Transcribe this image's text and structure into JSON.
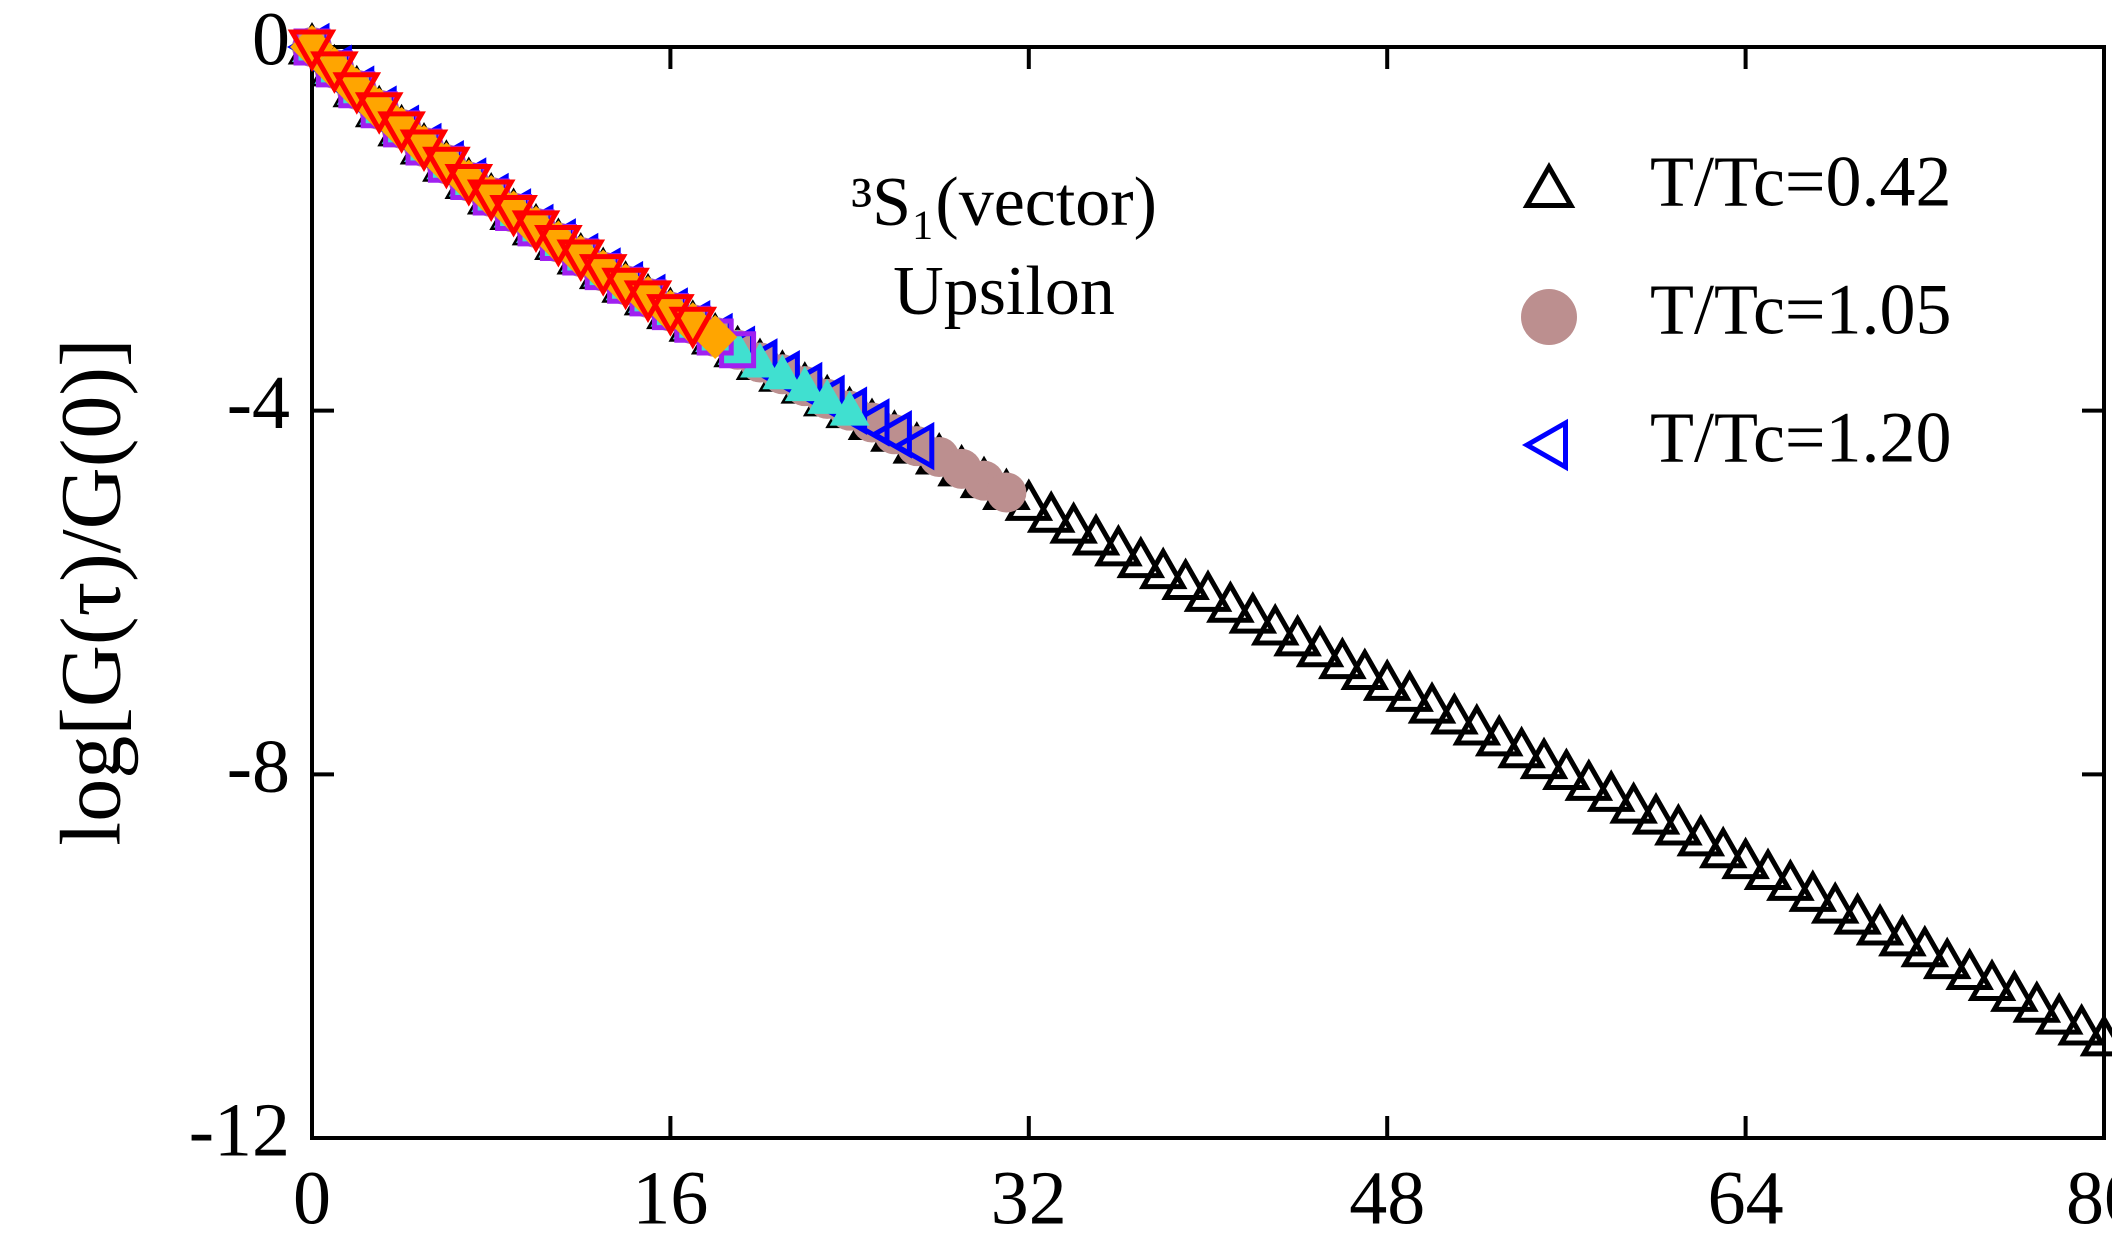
{
  "chart_data": {
    "type": "scatter",
    "ylabel": "log[G(τ)/G(0)]",
    "annotations": [
      "³S₁(vector)",
      "Upsilon"
    ],
    "xlim": [
      0,
      80
    ],
    "xticks": [
      0,
      16,
      32,
      48,
      64,
      80
    ],
    "ylim": [
      -12,
      0
    ],
    "yticks": [
      0,
      -4,
      -8,
      -12
    ],
    "series": [
      {
        "name": "T/Tc=0.42",
        "color": "#000000",
        "marker": "triangle-up",
        "filled": false,
        "x": [
          0,
          1,
          2,
          3,
          4,
          5,
          6,
          7,
          8,
          9,
          10,
          11,
          12,
          13,
          14,
          15,
          16,
          17,
          18,
          19,
          20,
          21,
          22,
          23,
          24,
          25,
          26,
          27,
          28,
          29,
          30,
          31,
          32,
          33,
          34,
          35,
          36,
          37,
          38,
          39,
          40,
          41,
          42,
          43,
          44,
          45,
          46,
          47,
          48,
          49,
          50,
          51,
          52,
          53,
          54,
          55,
          56,
          57,
          58,
          59,
          60,
          61,
          62,
          63,
          64,
          65,
          66,
          67,
          68,
          69,
          70,
          71,
          72,
          73,
          74,
          75,
          76,
          77,
          78,
          79,
          80
        ],
        "values": [
          0,
          -0.24,
          -0.47,
          -0.69,
          -0.9,
          -1.1,
          -1.29,
          -1.48,
          -1.65,
          -1.82,
          -1.99,
          -2.15,
          -2.31,
          -2.47,
          -2.62,
          -2.76,
          -2.91,
          -3.05,
          -3.19,
          -3.33,
          -3.47,
          -3.6,
          -3.73,
          -3.87,
          -4,
          -4.13,
          -4.26,
          -4.39,
          -4.51,
          -4.64,
          -4.77,
          -4.9,
          -5.02,
          -5.15,
          -5.27,
          -5.4,
          -5.52,
          -5.65,
          -5.77,
          -5.89,
          -6.02,
          -6.14,
          -6.26,
          -6.39,
          -6.51,
          -6.63,
          -6.76,
          -6.88,
          -7,
          -7.12,
          -7.25,
          -7.37,
          -7.49,
          -7.61,
          -7.74,
          -7.86,
          -7.98,
          -8.1,
          -8.22,
          -8.35,
          -8.47,
          -8.59,
          -8.71,
          -8.84,
          -8.96,
          -9.08,
          -9.2,
          -9.32,
          -9.45,
          -9.57,
          -9.69,
          -9.81,
          -9.93,
          -10.06,
          -10.18,
          -10.3,
          -10.42,
          -10.54,
          -10.67,
          -10.79,
          -10.91
        ]
      },
      {
        "name": "T/Tc=1.05",
        "color": "#bc8f8f",
        "marker": "circle",
        "filled": true,
        "x": [
          0,
          1,
          2,
          3,
          4,
          5,
          6,
          7,
          8,
          9,
          10,
          11,
          12,
          13,
          14,
          15,
          16,
          17,
          18,
          19,
          20,
          21,
          22,
          23,
          24,
          25,
          26,
          27,
          28,
          29,
          30,
          31
        ],
        "values": [
          0,
          -0.24,
          -0.47,
          -0.69,
          -0.9,
          -1.1,
          -1.29,
          -1.48,
          -1.65,
          -1.82,
          -1.99,
          -2.15,
          -2.31,
          -2.47,
          -2.62,
          -2.76,
          -2.91,
          -3.05,
          -3.19,
          -3.33,
          -3.47,
          -3.6,
          -3.73,
          -3.87,
          -4,
          -4.13,
          -4.26,
          -4.39,
          -4.51,
          -4.64,
          -4.77,
          -4.9
        ]
      },
      {
        "name": "T/Tc=1.20",
        "color": "#0000ff",
        "marker": "triangle-left",
        "filled": false,
        "x": [
          0,
          1,
          2,
          3,
          4,
          5,
          6,
          7,
          8,
          9,
          10,
          11,
          12,
          13,
          14,
          15,
          16,
          17,
          18,
          19,
          20,
          21,
          22,
          23,
          24,
          25,
          26,
          27
        ],
        "values": [
          0,
          -0.24,
          -0.47,
          -0.69,
          -0.9,
          -1.1,
          -1.29,
          -1.48,
          -1.65,
          -1.82,
          -1.99,
          -2.15,
          -2.31,
          -2.47,
          -2.62,
          -2.76,
          -2.91,
          -3.05,
          -3.19,
          -3.33,
          -3.47,
          -3.6,
          -3.73,
          -3.87,
          -4,
          -4.13,
          -4.26,
          -4.39
        ]
      },
      {
        "color": "#40e0d0",
        "marker": "triangle-up",
        "filled": true,
        "x": [
          0,
          1,
          2,
          3,
          4,
          5,
          6,
          7,
          8,
          9,
          10,
          11,
          12,
          13,
          14,
          15,
          16,
          17,
          18,
          19,
          20,
          21,
          22,
          23,
          24
        ],
        "values": [
          0,
          -0.24,
          -0.47,
          -0.69,
          -0.9,
          -1.1,
          -1.29,
          -1.48,
          -1.65,
          -1.82,
          -1.99,
          -2.15,
          -2.31,
          -2.47,
          -2.62,
          -2.76,
          -2.91,
          -3.05,
          -3.19,
          -3.33,
          -3.47,
          -3.6,
          -3.73,
          -3.87,
          -4
        ]
      },
      {
        "color": "#a020f0",
        "marker": "square",
        "filled": false,
        "x": [
          0,
          1,
          2,
          3,
          4,
          5,
          6,
          7,
          8,
          9,
          10,
          11,
          12,
          13,
          14,
          15,
          16,
          17,
          18,
          19
        ],
        "values": [
          0,
          -0.24,
          -0.47,
          -0.69,
          -0.9,
          -1.1,
          -1.29,
          -1.48,
          -1.65,
          -1.82,
          -1.99,
          -2.15,
          -2.31,
          -2.47,
          -2.62,
          -2.76,
          -2.91,
          -3.05,
          -3.19,
          -3.33
        ]
      },
      {
        "color": "#ffa500",
        "marker": "diamond",
        "filled": true,
        "x": [
          0,
          1,
          2,
          3,
          4,
          5,
          6,
          7,
          8,
          9,
          10,
          11,
          12,
          13,
          14,
          15,
          16,
          17,
          18
        ],
        "values": [
          0,
          -0.24,
          -0.47,
          -0.69,
          -0.9,
          -1.1,
          -1.29,
          -1.48,
          -1.65,
          -1.82,
          -1.99,
          -2.15,
          -2.31,
          -2.47,
          -2.62,
          -2.76,
          -2.91,
          -3.05,
          -3.19
        ]
      },
      {
        "color": "#ff0000",
        "marker": "triangle-down",
        "filled": false,
        "x": [
          0,
          1,
          2,
          3,
          4,
          5,
          6,
          7,
          8,
          9,
          10,
          11,
          12,
          13,
          14,
          15,
          16,
          17
        ],
        "values": [
          0,
          -0.24,
          -0.47,
          -0.69,
          -0.9,
          -1.1,
          -1.29,
          -1.48,
          -1.65,
          -1.82,
          -1.99,
          -2.15,
          -2.31,
          -2.47,
          -2.62,
          -2.76,
          -2.91,
          -3.05
        ]
      }
    ]
  }
}
